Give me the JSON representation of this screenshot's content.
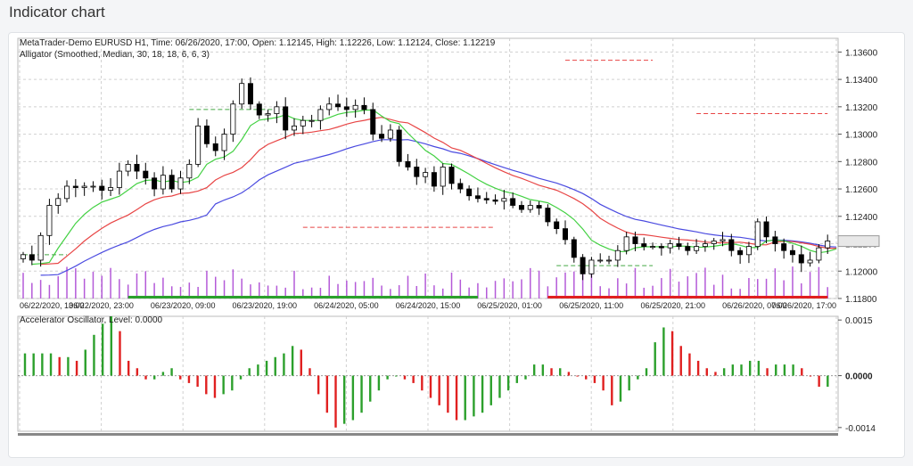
{
  "page": {
    "title": "Indicator chart"
  },
  "main_chart": {
    "header": "MetaTrader-Demo EURUSD H1, Time: 06/26/2020, 17:00, Open: 1.12145, High: 1.12226, Low: 1.12124, Close: 1.12219",
    "indicator_label": "Alligator (Smoothed, Median, 30, 18, 18, 6, 6, 3)",
    "last_price": "1.12219"
  },
  "sub_chart": {
    "label": "Accelerator Oscillator, Level: 0.0000"
  },
  "colors": {
    "up_candle": "#ffffff",
    "down_candle": "#000000",
    "jaw": "#4a4ae0",
    "teeth": "#e84545",
    "lips": "#43d143",
    "volume": "#b45ad8",
    "ao_up": "#2ca02c",
    "ao_down": "#e02020",
    "grid": "#d0d0d0"
  },
  "chart_data": [
    {
      "type": "candlestick",
      "title": "MetaTrader-Demo EURUSD H1, Time: 06/26/2020, 17:00, Open: 1.12145, High: 1.12226, Low: 1.12124, Close: 1.12219",
      "ylim": [
        1.118,
        1.137
      ],
      "y_ticks": [
        "1.13600",
        "1.13400",
        "1.13200",
        "1.13000",
        "1.12800",
        "1.12600",
        "1.12400",
        "1.12200",
        "1.12000",
        "1.11800"
      ],
      "x_ticks": [
        "06/22/2020, 13:00",
        "06/22/2020, 23:00",
        "06/23/2020, 09:00",
        "06/23/2020, 19:00",
        "06/24/2020, 05:00",
        "06/24/2020, 15:00",
        "06/25/2020, 01:00",
        "06/25/2020, 11:00",
        "06/25/2020, 21:00",
        "06/26/2020, 07:00",
        "06/26/2020, 17:00"
      ],
      "close_key": [
        1.1212,
        1.1208,
        1.1226,
        1.1248,
        1.1253,
        1.1262,
        1.1261,
        1.1262,
        1.1262,
        1.1259,
        1.1261,
        1.1273,
        1.1278,
        1.1273,
        1.1268,
        1.126,
        1.127,
        1.126,
        1.1268,
        1.1278,
        1.1306,
        1.1293,
        1.1288,
        1.13,
        1.1322,
        1.1337,
        1.1322,
        1.1314,
        1.1315,
        1.132,
        1.1303,
        1.1306,
        1.131,
        1.131,
        1.1318,
        1.1322,
        1.132,
        1.1318,
        1.1321,
        1.1318,
        1.13,
        1.1297,
        1.1303,
        1.128,
        1.1276,
        1.1269,
        1.1272,
        1.1262,
        1.1276,
        1.1264,
        1.126,
        1.1255,
        1.1253,
        1.1252,
        1.1251,
        1.1253,
        1.1248,
        1.1245,
        1.1248,
        1.1246,
        1.1236,
        1.1231,
        1.1223,
        1.121,
        1.1198,
        1.1208,
        1.1208,
        1.1208,
        1.1215,
        1.1225,
        1.122,
        1.1218,
        1.1218,
        1.1217,
        1.122,
        1.1218,
        1.1215,
        1.1218,
        1.122,
        1.1222,
        1.1223,
        1.1215,
        1.1212,
        1.1218,
        1.1236,
        1.1225,
        1.122,
        1.1215,
        1.1212,
        1.1206,
        1.1208,
        1.1217,
        1.1222
      ],
      "alligator": {
        "jaw": {
          "name": "",
          "note": "blue"
        },
        "teeth": {
          "name": "",
          "note": "red"
        },
        "lips": {
          "name": "",
          "note": "green"
        }
      },
      "fractal_levels": [
        1.1354,
        1.1318,
        1.1315,
        1.1232,
        1.1212,
        1.1204
      ],
      "grid": true
    },
    {
      "type": "bar",
      "title": "Accelerator Oscillator, Level: 0.0000",
      "ylim": [
        -0.0015,
        0.0016
      ],
      "y_ticks": [
        "0.0015",
        "0.0000",
        "-0.0014"
      ],
      "values": [
        0.0006,
        0.0006,
        0.0006,
        0.0006,
        0.0005,
        0.0005,
        0.0004,
        0.0007,
        0.0011,
        0.0014,
        0.0016,
        0.0012,
        0.0004,
        0.0002,
        -0.0001,
        -0.0001,
        0.0001,
        0.0002,
        -0.0001,
        -0.0002,
        -0.0003,
        -0.0005,
        -0.0006,
        -0.0005,
        -0.0004,
        -0.0001,
        0.0002,
        0.0003,
        0.0004,
        0.0005,
        0.0006,
        0.0008,
        0.0007,
        0.0002,
        -0.0005,
        -0.001,
        -0.0014,
        -0.0013,
        -0.0012,
        -0.001,
        -0.0007,
        -0.0004,
        -0.0001,
        0.0,
        -0.0001,
        -0.0002,
        -0.0004,
        -0.0006,
        -0.0008,
        -0.001,
        -0.0012,
        -0.0012,
        -0.0011,
        -0.001,
        -0.0008,
        -0.0006,
        -0.0004,
        -0.0002,
        -0.0001,
        0.0003,
        0.0003,
        0.0002,
        0.0002,
        0.0001,
        0.0,
        -0.0001,
        -0.0002,
        -0.0004,
        -0.0008,
        -0.0007,
        -0.0004,
        -0.0001,
        0.0002,
        0.0009,
        0.0013,
        0.0012,
        0.0008,
        0.0006,
        0.0004,
        0.0002,
        0.0001,
        0.0002,
        0.0003,
        0.0003,
        0.0004,
        0.0004,
        0.0002,
        0.0003,
        0.0003,
        0.0003,
        0.0002,
        0.0,
        -0.0003,
        -0.0003
      ]
    }
  ]
}
